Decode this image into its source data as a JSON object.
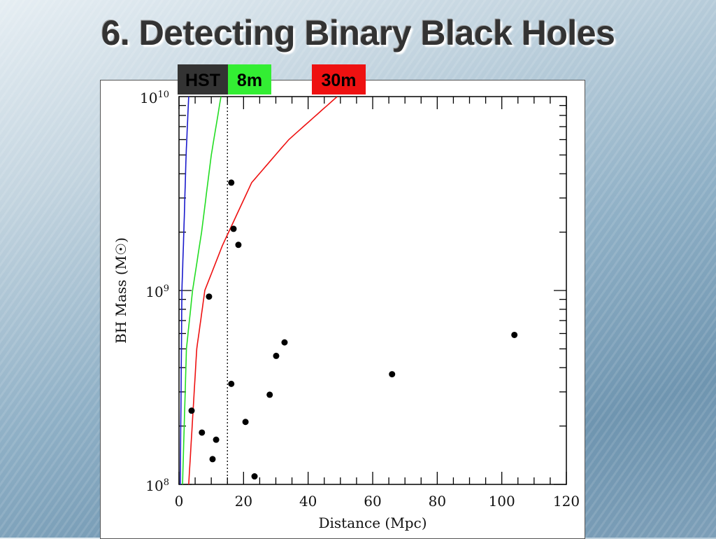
{
  "slide": {
    "title": "6. Detecting Binary Black Holes"
  },
  "labels": [
    {
      "text": "HST",
      "color": "#333333"
    },
    {
      "text": "8m",
      "color": "#33ee33"
    },
    {
      "text": "30m",
      "color": "#ee1111"
    }
  ],
  "chart_data": {
    "type": "scatter",
    "title": "",
    "xlabel": "Distance (Mpc)",
    "ylabel": "BH Mass (M☉)",
    "xlim": [
      0,
      120
    ],
    "ylim": [
      100000000.0,
      10000000000.0
    ],
    "yscale": "log",
    "xticks": [
      "0",
      "20",
      "40",
      "60",
      "80",
      "100",
      "120"
    ],
    "yticks": [
      {
        "base": "10",
        "exp": "8"
      },
      {
        "base": "10",
        "exp": "9"
      },
      {
        "base": "10",
        "exp": "10"
      }
    ],
    "vline": 15,
    "points": [
      [
        3.9,
        240000000.0
      ],
      [
        7.1,
        185000000.0
      ],
      [
        9.3,
        930000000.0
      ],
      [
        10.4,
        135000000.0
      ],
      [
        11.5,
        170000000.0
      ],
      [
        16.2,
        3600000000.0
      ],
      [
        16.2,
        330000000.0
      ],
      [
        16.9,
        2080000000.0
      ],
      [
        18.4,
        1720000000.0
      ],
      [
        20.6,
        210000000.0
      ],
      [
        23.4,
        110000000.0
      ],
      [
        28.1,
        290000000.0
      ],
      [
        30.1,
        460000000.0
      ],
      [
        32.7,
        540000000.0
      ],
      [
        66.0,
        370000000.0
      ],
      [
        103.9,
        590000000.0
      ]
    ],
    "series": [
      {
        "name": "HST",
        "color": "#1a1acc",
        "values": [
          [
            0.4,
            100000000.0
          ],
          [
            0.9,
            1000000000.0
          ],
          [
            1.5,
            2000000000.0
          ],
          [
            2.2,
            5000000000.0
          ],
          [
            3.0,
            10000000000.0
          ]
        ]
      },
      {
        "name": "8m",
        "color": "#22dd22",
        "values": [
          [
            1.1,
            100000000.0
          ],
          [
            2.3,
            500000000.0
          ],
          [
            4.2,
            1000000000.0
          ],
          [
            7.0,
            2000000000.0
          ],
          [
            10.0,
            5000000000.0
          ],
          [
            13.0,
            10000000000.0
          ]
        ]
      },
      {
        "name": "30m",
        "color": "#ee1111",
        "values": [
          [
            3.0,
            100000000.0
          ],
          [
            5.5,
            500000000.0
          ],
          [
            8.0,
            1000000000.0
          ],
          [
            13.4,
            1700000000.0
          ],
          [
            22.5,
            3600000000.0
          ],
          [
            34,
            6000000000.0
          ],
          [
            49,
            10000000000.0
          ]
        ]
      }
    ]
  }
}
